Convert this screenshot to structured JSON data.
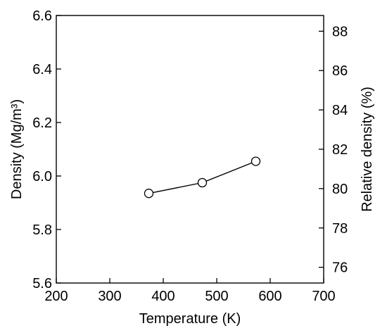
{
  "chart_data": {
    "type": "line",
    "title": "",
    "xlabel": "Temperature (K)",
    "ylabel": "Density (Mg/m³)",
    "y2label": "Relative density (%)",
    "xlim": [
      200,
      700
    ],
    "ylim": [
      5.6,
      6.6
    ],
    "y2lim": [
      75.2,
      88.8
    ],
    "x_ticks": [
      200,
      300,
      400,
      500,
      600,
      700
    ],
    "x_tick_labels": [
      "200",
      "300",
      "400",
      "500",
      "600",
      "700"
    ],
    "y_ticks": [
      5.6,
      5.8,
      6.0,
      6.2,
      6.4,
      6.6
    ],
    "y_tick_labels": [
      "5.6",
      "5.8",
      "6.0",
      "6.2",
      "6.4",
      "6.6"
    ],
    "y2_ticks": [
      76,
      78,
      80,
      82,
      84,
      86,
      88
    ],
    "y2_tick_labels": [
      "76",
      "78",
      "80",
      "82",
      "84",
      "86",
      "88"
    ],
    "grid": false,
    "series": [
      {
        "x": [
          373,
          473,
          573
        ],
        "y": [
          5.935,
          5.975,
          6.055
        ],
        "marker": "open-circle"
      }
    ],
    "colors": {
      "line": "#000000",
      "marker_fill": "#ffffff",
      "axis": "#000000"
    }
  }
}
